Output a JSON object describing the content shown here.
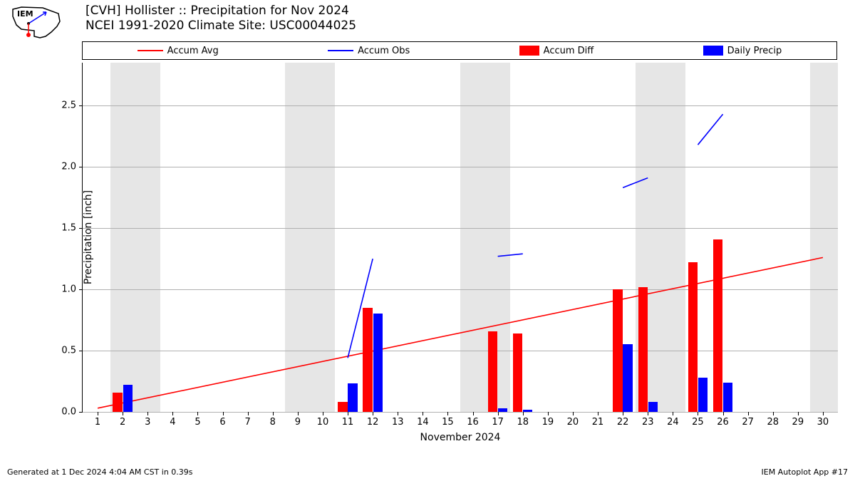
{
  "title": {
    "line1": "[CVH] Hollister :: Precipitation for Nov 2024",
    "line2": "NCEI 1991-2020 Climate Site: USC00044025"
  },
  "footer": {
    "left": "Generated at 1 Dec 2024 4:04 AM CST in 0.39s",
    "right": "IEM Autoplot App #17"
  },
  "logo": {
    "text_top": "IEM",
    "stroke": "#000000",
    "wind_color": "#0000ff",
    "temp_color": "#ff0000"
  },
  "chart": {
    "ylabel": "Precipitation [inch]",
    "xlabel": "November 2024",
    "background_color": "#ffffff",
    "grid_color": "#b0b0b0",
    "band_color": "#e6e6e6",
    "ylim": [
      0,
      2.85
    ],
    "yticks": [
      0.0,
      0.5,
      1.0,
      1.5,
      2.0,
      2.5
    ],
    "yticklabels": [
      "0.0",
      "0.5",
      "1.0",
      "1.5",
      "2.0",
      "2.5"
    ],
    "xrange": [
      0.4,
      30.6
    ],
    "xticks": [
      1,
      2,
      3,
      4,
      5,
      6,
      7,
      8,
      9,
      10,
      11,
      12,
      13,
      14,
      15,
      16,
      17,
      18,
      19,
      20,
      21,
      22,
      23,
      24,
      25,
      26,
      27,
      28,
      29,
      30
    ],
    "label_fontsize": 14,
    "tick_fontsize": 13,
    "weekend_bands": [
      [
        1.5,
        3.5
      ],
      [
        8.5,
        10.5
      ],
      [
        15.5,
        17.5
      ],
      [
        22.5,
        24.5
      ],
      [
        29.5,
        30.6
      ]
    ],
    "legend": [
      {
        "label": "Accum Avg",
        "type": "line",
        "color": "#ff0000"
      },
      {
        "label": "Accum Obs",
        "type": "line",
        "color": "#0000ff"
      },
      {
        "label": "Accum Diff",
        "type": "box",
        "color": "#ff0000"
      },
      {
        "label": "Daily Precip",
        "type": "box",
        "color": "#0000ff"
      }
    ],
    "series": {
      "accum_avg": {
        "color": "#ff0000",
        "line_width": 1.6,
        "points": [
          [
            1,
            0.03
          ],
          [
            30,
            1.26
          ]
        ]
      },
      "accum_obs": {
        "color": "#0000ff",
        "line_width": 1.6,
        "segments": [
          [
            [
              11,
              0.44
            ],
            [
              12,
              1.25
            ]
          ],
          [
            [
              17,
              1.27
            ],
            [
              18,
              1.29
            ]
          ],
          [
            [
              22,
              1.83
            ],
            [
              23,
              1.91
            ]
          ],
          [
            [
              25,
              2.18
            ],
            [
              26,
              2.43
            ]
          ]
        ]
      },
      "accum_diff": {
        "color": "#ff0000",
        "bar_width": 0.38,
        "offset": -0.2,
        "data": {
          "2": 0.16,
          "11": 0.08,
          "12": 0.85,
          "17": 0.66,
          "18": 0.64,
          "22": 1.0,
          "23": 1.02,
          "25": 1.22,
          "26": 1.41
        }
      },
      "daily_precip": {
        "color": "#0000ff",
        "bar_width": 0.38,
        "offset": 0.2,
        "data": {
          "2": 0.22,
          "11": 0.23,
          "12": 0.8,
          "17": 0.03,
          "18": 0.02,
          "22": 0.55,
          "23": 0.08,
          "25": 0.28,
          "26": 0.24
        }
      }
    }
  }
}
